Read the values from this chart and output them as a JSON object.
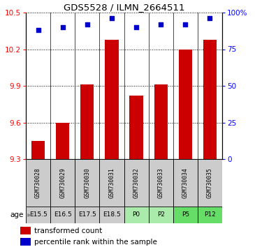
{
  "title": "GDS5528 / ILMN_2664511",
  "samples": [
    "GSM730028",
    "GSM730029",
    "GSM730030",
    "GSM730031",
    "GSM730032",
    "GSM730033",
    "GSM730034",
    "GSM730035"
  ],
  "ages": [
    "E15.5",
    "E16.5",
    "E17.5",
    "E18.5",
    "P0",
    "P2",
    "P5",
    "P12"
  ],
  "transformed_counts": [
    9.45,
    9.6,
    9.91,
    10.28,
    9.82,
    9.91,
    10.2,
    10.28
  ],
  "percentile_ranks": [
    88,
    90,
    92,
    96,
    90,
    92,
    92,
    96
  ],
  "ylim_left": [
    9.3,
    10.5
  ],
  "ylim_right": [
    0,
    100
  ],
  "yticks_left": [
    9.3,
    9.6,
    9.9,
    10.2,
    10.5
  ],
  "yticks_right": [
    0,
    25,
    50,
    75,
    100
  ],
  "bar_color": "#cc0000",
  "scatter_color": "#0000cc",
  "age_colors": {
    "E15.5": "#cccccc",
    "E16.5": "#cccccc",
    "E17.5": "#cccccc",
    "E18.5": "#cccccc",
    "P0": "#aaeaaa",
    "P2": "#aaeaaa",
    "P5": "#66dd66",
    "P12": "#66dd66"
  },
  "legend_bar_label": "transformed count",
  "legend_scatter_label": "percentile rank within the sample",
  "age_label": "age"
}
